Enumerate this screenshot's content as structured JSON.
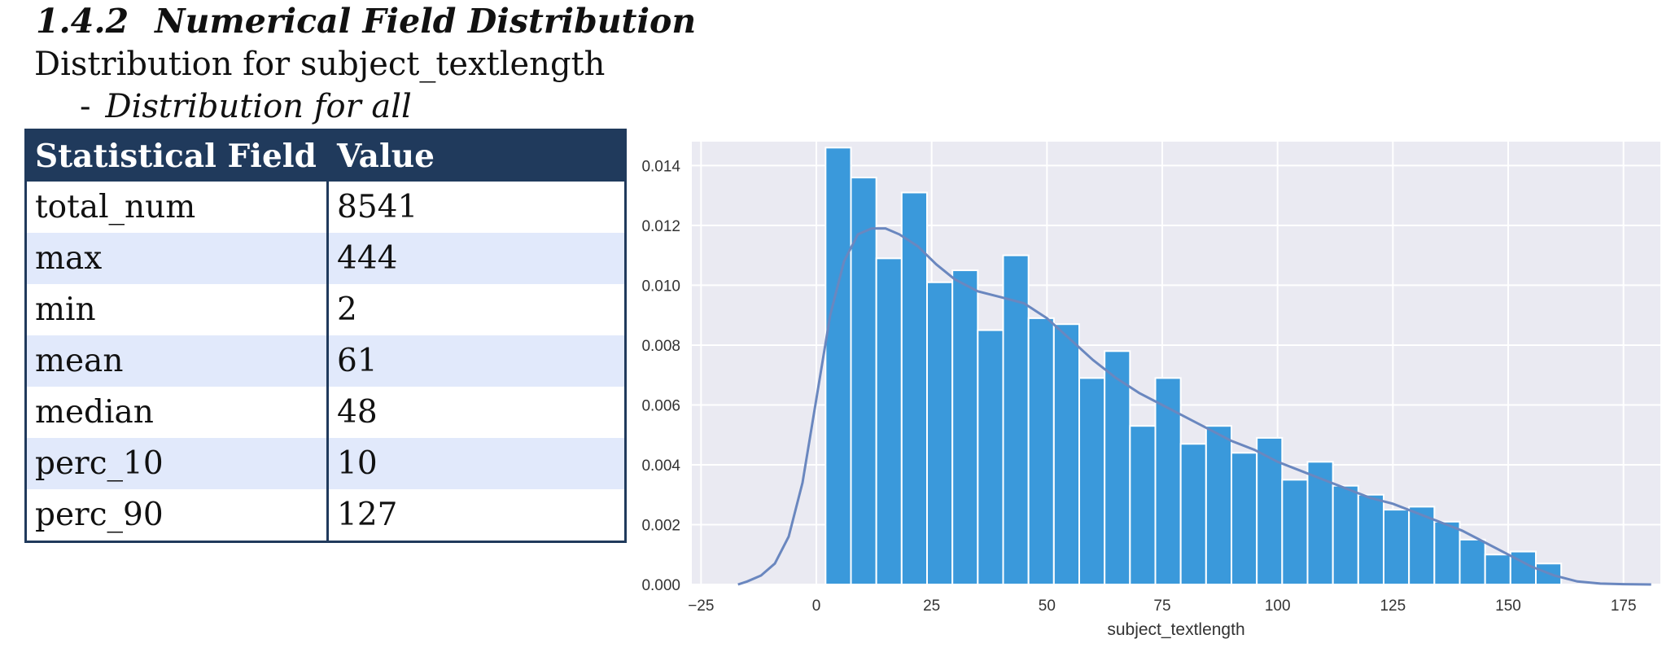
{
  "document": {
    "section_number": "1.4.2",
    "section_title": "Numerical Field Distribution",
    "subheading": "Distribution for subject_textlength",
    "bullet_dash": "-",
    "bullet_text": "Distribution for all"
  },
  "table": {
    "headers": [
      "Statistical Field",
      "Value"
    ],
    "rows": [
      {
        "field": "total_num",
        "value": "8541"
      },
      {
        "field": "max",
        "value": "444"
      },
      {
        "field": "min",
        "value": "2"
      },
      {
        "field": "mean",
        "value": "61"
      },
      {
        "field": "median",
        "value": "48"
      },
      {
        "field": "perc_10",
        "value": "10"
      },
      {
        "field": "perc_90",
        "value": "127"
      }
    ]
  },
  "chart_data": {
    "type": "bar",
    "title": "",
    "xlabel": "subject_textlength",
    "ylabel": "",
    "xlim": [
      -27,
      183
    ],
    "ylim": [
      0,
      0.0148
    ],
    "grid": true,
    "xticks": [
      -25,
      0,
      25,
      50,
      75,
      100,
      125,
      150,
      175
    ],
    "yticks": [
      0.0,
      0.002,
      0.004,
      0.006,
      0.008,
      0.01,
      0.012,
      0.014
    ],
    "ytick_labels": [
      "0.000",
      "0.002",
      "0.004",
      "0.006",
      "0.008",
      "0.010",
      "0.012",
      "0.014"
    ],
    "colors": {
      "background": "#eaeaf2",
      "grid": "#ffffff",
      "bar": "#3a99db",
      "bar_edge": "#ffffff",
      "kde": "#6a87bf",
      "tick_text": "#333333"
    },
    "bin_start": 2,
    "bin_width": 5.5,
    "values": [
      0.0146,
      0.0136,
      0.0109,
      0.0131,
      0.0101,
      0.0105,
      0.0085,
      0.011,
      0.0089,
      0.0087,
      0.0069,
      0.0078,
      0.0053,
      0.0069,
      0.0047,
      0.0053,
      0.0044,
      0.0049,
      0.0035,
      0.0041,
      0.0033,
      0.003,
      0.0025,
      0.0026,
      0.0021,
      0.0015,
      0.001,
      0.0011,
      0.0007
    ],
    "kde": {
      "x": [
        -17,
        -15,
        -12,
        -9,
        -6,
        -3,
        0,
        3,
        6,
        9,
        12,
        15,
        18,
        22,
        26,
        30,
        35,
        40,
        45,
        50,
        55,
        60,
        65,
        70,
        75,
        80,
        85,
        90,
        95,
        100,
        105,
        110,
        115,
        120,
        125,
        130,
        135,
        140,
        145,
        150,
        155,
        160,
        165,
        170,
        175,
        181
      ],
      "y": [
        0.0,
        0.0001,
        0.0003,
        0.0007,
        0.0016,
        0.0034,
        0.0062,
        0.009,
        0.0108,
        0.0117,
        0.0119,
        0.0119,
        0.0117,
        0.0113,
        0.0107,
        0.0102,
        0.0098,
        0.0096,
        0.0094,
        0.0089,
        0.0082,
        0.0075,
        0.0069,
        0.0064,
        0.006,
        0.0056,
        0.0052,
        0.0048,
        0.0045,
        0.0041,
        0.0038,
        0.0035,
        0.0032,
        0.0029,
        0.0027,
        0.0024,
        0.0021,
        0.0018,
        0.0014,
        0.001,
        0.0006,
        0.0003,
        0.0001,
        3e-05,
        1e-05,
        0.0
      ]
    }
  }
}
